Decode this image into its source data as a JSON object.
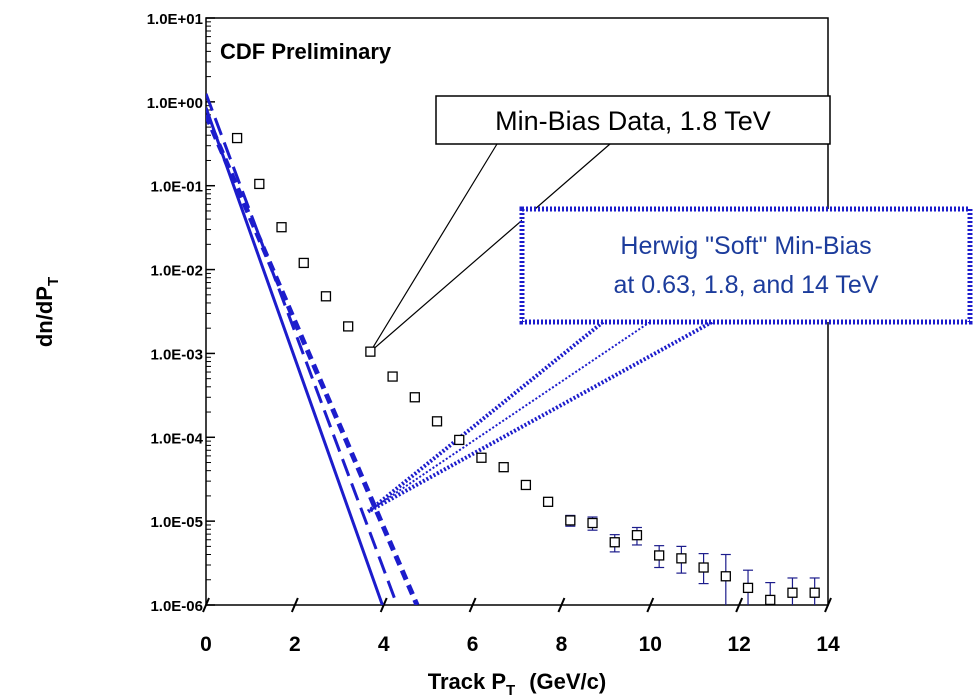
{
  "chart_data": {
    "type": "scatter",
    "title": "CDF Preliminary",
    "xlabel": "Track P",
    "xlabel_sub": "T",
    "xlabel_units": "(GeV/c)",
    "ylabel": "dn/dP",
    "ylabel_sub": "T",
    "xlim": [
      0,
      14
    ],
    "ylim": [
      1e-06,
      10
    ],
    "yscale": "log",
    "grid": false,
    "x_ticks": [
      0,
      2,
      4,
      6,
      8,
      10,
      12,
      14
    ],
    "x_tick_labels": [
      "0",
      "2",
      "4",
      "6",
      "8",
      "10",
      "12",
      "14"
    ],
    "y_ticks": [
      10,
      1,
      0.1,
      0.01,
      0.001,
      0.0001,
      1e-05,
      1e-06
    ],
    "y_tick_labels": [
      "1.0E+01",
      "1.0E+00",
      "1.0E-01",
      "1.0E-02",
      "1.0E-03",
      "1.0E-04",
      "1.0E-05",
      "1.0E-06"
    ],
    "series": [
      {
        "kind": "points",
        "x": [
          0.7,
          1.2,
          1.7,
          2.2,
          2.7,
          3.2,
          3.7,
          4.2,
          4.7,
          5.2,
          5.7,
          6.2,
          6.7,
          7.2,
          7.7,
          8.2,
          8.7,
          9.2,
          9.7,
          10.2,
          10.7,
          11.2,
          11.7,
          12.2,
          12.7,
          13.2,
          13.7
        ],
        "y": [
          0.37,
          0.105,
          0.032,
          0.012,
          0.0048,
          0.0021,
          0.00105,
          0.00053,
          0.0003,
          0.000155,
          9.3e-05,
          5.7e-05,
          4.4e-05,
          2.7e-05,
          1.7e-05,
          1.02e-05,
          9.5e-06,
          5.6e-06,
          6.8e-06,
          3.9e-06,
          3.6e-06,
          2.8e-06,
          2.2e-06,
          1.6e-06,
          1.15e-06,
          1.4e-06,
          1.4e-06
        ],
        "err_lo": [
          0,
          0,
          0,
          0,
          0,
          0,
          0,
          0,
          0,
          0,
          0,
          0,
          0,
          0,
          0,
          1.5e-06,
          1.7e-06,
          1.3e-06,
          1.6e-06,
          1.1e-06,
          1.2e-06,
          1e-06,
          1.2e-06,
          9e-07,
          6e-07,
          7e-07,
          7e-07
        ],
        "err_hi": [
          0,
          0,
          0,
          0,
          0,
          0,
          0,
          0,
          0,
          0,
          0,
          0,
          0,
          0,
          0,
          1.5e-06,
          1.7e-06,
          1.3e-06,
          1.6e-06,
          1.2e-06,
          1.4e-06,
          1.3e-06,
          1.8e-06,
          1e-06,
          7e-07,
          7e-07,
          7e-07
        ],
        "color": "#000000"
      },
      {
        "kind": "curve",
        "style": "solid",
        "color": "#1c1ccc",
        "x": [
          0.0,
          3.97
        ],
        "y": [
          0.85,
          1e-06
        ]
      },
      {
        "kind": "curve",
        "style": "dashed",
        "color": "#1c1ccc",
        "x": [
          0.0,
          4.3
        ],
        "y": [
          1.25,
          1e-06
        ]
      },
      {
        "kind": "curve",
        "style": "dashed-heavy",
        "color": "#1c1ccc",
        "x": [
          0.0,
          4.75
        ],
        "y": [
          0.7,
          1e-06
        ]
      }
    ],
    "annotations": [
      {
        "text": "Min-Bias Data, 1.8 TeV",
        "box": "solid",
        "text_color": "#000000",
        "pointers": [
          {
            "x": 3.7,
            "y": 0.00105
          }
        ]
      },
      {
        "text_lines": [
          "Herwig \"Soft\" Min-Bias",
          "at 0.63, 1.8, and 14 TeV"
        ],
        "box": "dotted",
        "box_color": "#1c1ccc",
        "text_color": "#1c3c9c",
        "pointers": [
          {
            "x": 3.65,
            "y": 1.3e-05
          }
        ]
      }
    ]
  }
}
